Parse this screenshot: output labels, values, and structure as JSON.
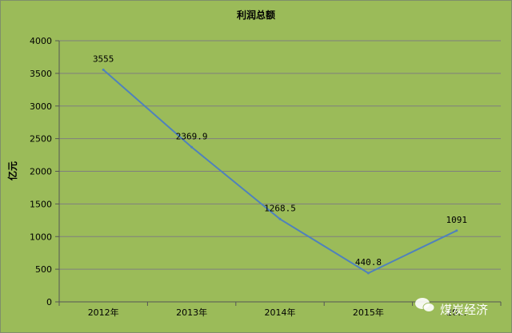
{
  "chart_data": {
    "type": "line",
    "title": "利润总额",
    "ylabel": "亿元",
    "xlabel": "",
    "categories": [
      "2012年",
      "2013年",
      "2014年",
      "2015年",
      "2016年"
    ],
    "x_tick_labels": [
      "2012年",
      "2013年",
      "2014年",
      "2015年",
      "20…"
    ],
    "series": [
      {
        "values": [
          3555,
          2369.9,
          1268.5,
          440.8,
          1091
        ],
        "data_labels": [
          "3555",
          "2369.9",
          "1268.5",
          "440.8",
          "1091"
        ]
      }
    ],
    "ylim": [
      0,
      4000
    ],
    "yticks": [
      "0",
      "500",
      "1000",
      "1500",
      "2000",
      "2500",
      "3000",
      "3500",
      "4000"
    ],
    "grid": true,
    "line_color": "#4f81bd",
    "background_color": "#9bbb59"
  },
  "watermark": {
    "text": "煤炭经济",
    "icon": "wechat-icon"
  }
}
